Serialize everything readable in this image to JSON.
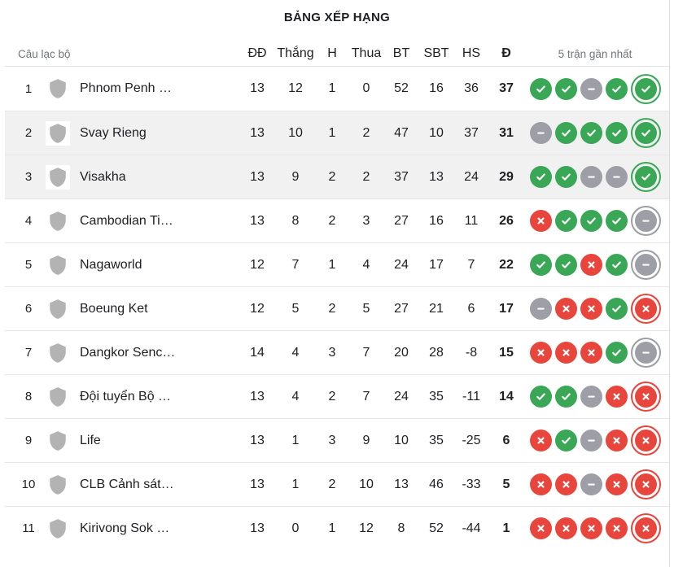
{
  "title": "BẢNG XẾP HẠNG",
  "columns": {
    "club": "Câu lạc bộ",
    "played": "ĐĐ",
    "wins": "Thắng",
    "draws": "H",
    "losses": "Thua",
    "goals_for": "BT",
    "goals_against": "SBT",
    "goal_diff": "HS",
    "points": "Đ",
    "form": "5 trận gần nhất"
  },
  "colors": {
    "win": "#3aa757",
    "draw": "#9d9ea6",
    "loss": "#e8453c",
    "row_highlight": "#f1f1f2"
  },
  "standings": [
    {
      "rank": "1",
      "team": "Phnom Penh …",
      "played": "13",
      "wins": "12",
      "draws": "1",
      "losses": "0",
      "goals_for": "52",
      "goals_against": "16",
      "goal_diff": "36",
      "points": "37",
      "form": [
        "W",
        "W",
        "D",
        "W",
        "W"
      ],
      "highlighted": false
    },
    {
      "rank": "2",
      "team": "Svay Rieng",
      "played": "13",
      "wins": "10",
      "draws": "1",
      "losses": "2",
      "goals_for": "47",
      "goals_against": "10",
      "goal_diff": "37",
      "points": "31",
      "form": [
        "D",
        "W",
        "W",
        "W",
        "W"
      ],
      "highlighted": true
    },
    {
      "rank": "3",
      "team": "Visakha",
      "played": "13",
      "wins": "9",
      "draws": "2",
      "losses": "2",
      "goals_for": "37",
      "goals_against": "13",
      "goal_diff": "24",
      "points": "29",
      "form": [
        "W",
        "W",
        "D",
        "D",
        "W"
      ],
      "highlighted": true
    },
    {
      "rank": "4",
      "team": "Cambodian Ti…",
      "played": "13",
      "wins": "8",
      "draws": "2",
      "losses": "3",
      "goals_for": "27",
      "goals_against": "16",
      "goal_diff": "11",
      "points": "26",
      "form": [
        "L",
        "W",
        "W",
        "W",
        "D"
      ],
      "highlighted": false
    },
    {
      "rank": "5",
      "team": "Nagaworld",
      "played": "12",
      "wins": "7",
      "draws": "1",
      "losses": "4",
      "goals_for": "24",
      "goals_against": "17",
      "goal_diff": "7",
      "points": "22",
      "form": [
        "W",
        "W",
        "L",
        "W",
        "D"
      ],
      "highlighted": false
    },
    {
      "rank": "6",
      "team": "Boeung Ket",
      "played": "12",
      "wins": "5",
      "draws": "2",
      "losses": "5",
      "goals_for": "27",
      "goals_against": "21",
      "goal_diff": "6",
      "points": "17",
      "form": [
        "D",
        "L",
        "L",
        "W",
        "L"
      ],
      "highlighted": false
    },
    {
      "rank": "7",
      "team": "Dangkor Senc…",
      "played": "14",
      "wins": "4",
      "draws": "3",
      "losses": "7",
      "goals_for": "20",
      "goals_against": "28",
      "goal_diff": "-8",
      "points": "15",
      "form": [
        "L",
        "L",
        "L",
        "W",
        "D"
      ],
      "highlighted": false
    },
    {
      "rank": "8",
      "team": "Đội tuyển Bộ …",
      "played": "13",
      "wins": "4",
      "draws": "2",
      "losses": "7",
      "goals_for": "24",
      "goals_against": "35",
      "goal_diff": "-11",
      "points": "14",
      "form": [
        "W",
        "W",
        "D",
        "L",
        "L"
      ],
      "highlighted": false
    },
    {
      "rank": "9",
      "team": "Life",
      "played": "13",
      "wins": "1",
      "draws": "3",
      "losses": "9",
      "goals_for": "10",
      "goals_against": "35",
      "goal_diff": "-25",
      "points": "6",
      "form": [
        "L",
        "W",
        "D",
        "L",
        "L"
      ],
      "highlighted": false
    },
    {
      "rank": "10",
      "team": "CLB Cảnh sát…",
      "played": "13",
      "wins": "1",
      "draws": "2",
      "losses": "10",
      "goals_for": "13",
      "goals_against": "46",
      "goal_diff": "-33",
      "points": "5",
      "form": [
        "L",
        "L",
        "D",
        "L",
        "L"
      ],
      "highlighted": false
    },
    {
      "rank": "11",
      "team": "Kirivong Sok …",
      "played": "13",
      "wins": "0",
      "draws": "1",
      "losses": "12",
      "goals_for": "8",
      "goals_against": "52",
      "goal_diff": "-44",
      "points": "1",
      "form": [
        "L",
        "L",
        "L",
        "L",
        "L"
      ],
      "highlighted": false
    }
  ]
}
